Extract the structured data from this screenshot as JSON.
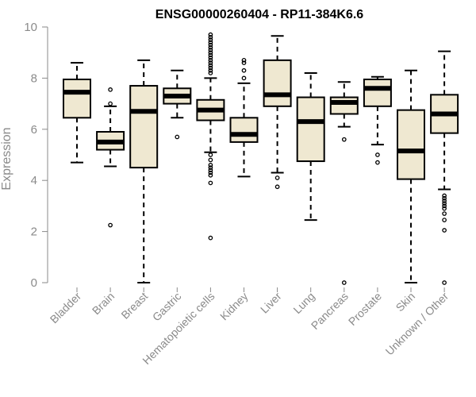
{
  "chart_data": {
    "type": "boxplot",
    "title": "ENSG00000260404 - RP11-384K6.6",
    "xlabel": "",
    "ylabel": "Expression",
    "ylim": [
      0,
      10
    ],
    "yticks": [
      0,
      2,
      4,
      6,
      8,
      10
    ],
    "grid": false,
    "box_color": "#efe8d1",
    "categories": [
      "Bladder",
      "Brain",
      "Breast",
      "Gastric",
      "Hematopoietic cells",
      "Kidney",
      "Liver",
      "Lung",
      "Pancreas",
      "Prostate",
      "Skin",
      "Unknown / Other"
    ],
    "boxes": [
      {
        "min": 4.7,
        "q1": 6.45,
        "median": 7.45,
        "q3": 7.95,
        "max": 8.6,
        "outliers": []
      },
      {
        "min": 4.55,
        "q1": 5.2,
        "median": 5.5,
        "q3": 5.9,
        "max": 6.9,
        "outliers": [
          7.55,
          7.0,
          2.25
        ]
      },
      {
        "min": 0.0,
        "q1": 4.5,
        "median": 6.7,
        "q3": 7.7,
        "max": 8.7,
        "outliers": []
      },
      {
        "min": 6.45,
        "q1": 7.0,
        "median": 7.3,
        "q3": 7.6,
        "max": 8.3,
        "outliers": [
          5.7
        ]
      },
      {
        "min": 5.1,
        "q1": 6.35,
        "median": 6.75,
        "q3": 7.15,
        "max": 8.0,
        "outliers": [
          9.7,
          9.6,
          9.5,
          9.4,
          9.3,
          9.2,
          9.1,
          9.0,
          8.9,
          8.8,
          8.7,
          8.6,
          8.5,
          8.4,
          8.3,
          8.2,
          5.0,
          4.8,
          4.6,
          4.5,
          4.4,
          4.3,
          4.2,
          3.9,
          1.75
        ]
      },
      {
        "min": 4.15,
        "q1": 5.5,
        "median": 5.8,
        "q3": 6.45,
        "max": 7.8,
        "outliers": [
          8.7,
          8.6,
          8.3,
          8.0
        ]
      },
      {
        "min": 4.3,
        "q1": 6.9,
        "median": 7.35,
        "q3": 8.7,
        "max": 9.65,
        "outliers": [
          4.1,
          3.75
        ]
      },
      {
        "min": 2.45,
        "q1": 4.75,
        "median": 6.3,
        "q3": 7.25,
        "max": 8.2,
        "outliers": []
      },
      {
        "min": 6.1,
        "q1": 6.6,
        "median": 7.05,
        "q3": 7.25,
        "max": 7.85,
        "outliers": [
          5.6,
          0.0
        ]
      },
      {
        "min": 5.4,
        "q1": 6.9,
        "median": 7.6,
        "q3": 7.95,
        "max": 8.05,
        "outliers": [
          5.0,
          4.7
        ]
      },
      {
        "min": 0.0,
        "q1": 4.05,
        "median": 5.15,
        "q3": 6.75,
        "max": 8.3,
        "outliers": []
      },
      {
        "min": 3.65,
        "q1": 5.85,
        "median": 6.6,
        "q3": 7.35,
        "max": 9.05,
        "outliers": [
          3.4,
          3.3,
          3.2,
          3.1,
          3.0,
          2.9,
          2.7,
          2.45,
          2.05,
          0.0
        ]
      }
    ]
  }
}
